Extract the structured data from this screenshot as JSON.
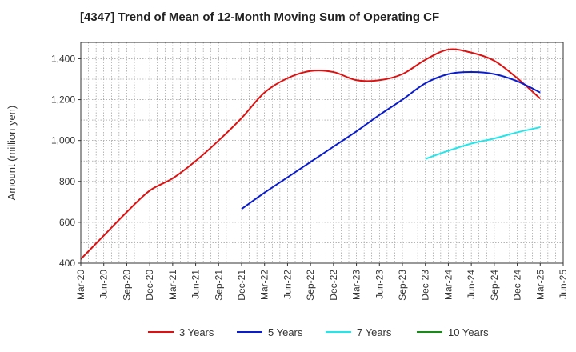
{
  "chart_data": {
    "type": "line",
    "title": "[4347]  Trend of Mean of 12-Month Moving Sum of Operating CF",
    "xlabel": "",
    "ylabel": "Amount (million yen)",
    "ylim": [
      400,
      1480
    ],
    "yticks": [
      400,
      600,
      800,
      1000,
      1200,
      1400
    ],
    "ytick_labels": [
      "400",
      "600",
      "800",
      "1,000",
      "1,200",
      "1,400"
    ],
    "categories": [
      "Mar-20",
      "Jun-20",
      "Sep-20",
      "Dec-20",
      "Mar-21",
      "Jun-21",
      "Sep-21",
      "Dec-21",
      "Mar-22",
      "Jun-22",
      "Sep-22",
      "Dec-22",
      "Mar-23",
      "Jun-23",
      "Sep-23",
      "Dec-23",
      "Mar-24",
      "Jun-24",
      "Sep-24",
      "Dec-24",
      "Mar-25",
      "Jun-25"
    ],
    "grid": true,
    "legend_position": "bottom",
    "series": [
      {
        "name": "3 Years",
        "color": "#dd1111",
        "values": [
          420,
          535,
          650,
          755,
          815,
          900,
          1000,
          1110,
          1235,
          1305,
          1340,
          1335,
          1295,
          1295,
          1325,
          1395,
          1445,
          1430,
          1390,
          1305,
          1205,
          null
        ]
      },
      {
        "name": "5 Years",
        "color": "#0a1ccc",
        "values": [
          null,
          null,
          null,
          null,
          null,
          null,
          null,
          665,
          745,
          820,
          895,
          970,
          1045,
          1125,
          1200,
          1280,
          1325,
          1335,
          1325,
          1290,
          1235,
          null
        ]
      },
      {
        "name": "7 Years",
        "color": "#22e6ea",
        "values": [
          null,
          null,
          null,
          null,
          null,
          null,
          null,
          null,
          null,
          null,
          null,
          null,
          null,
          null,
          null,
          910,
          950,
          985,
          1010,
          1040,
          1065,
          null
        ]
      },
      {
        "name": "10 Years",
        "color": "#1a8a1a",
        "values": [
          null,
          null,
          null,
          null,
          null,
          null,
          null,
          null,
          null,
          null,
          null,
          null,
          null,
          null,
          null,
          null,
          null,
          null,
          null,
          null,
          null,
          null
        ]
      }
    ]
  }
}
